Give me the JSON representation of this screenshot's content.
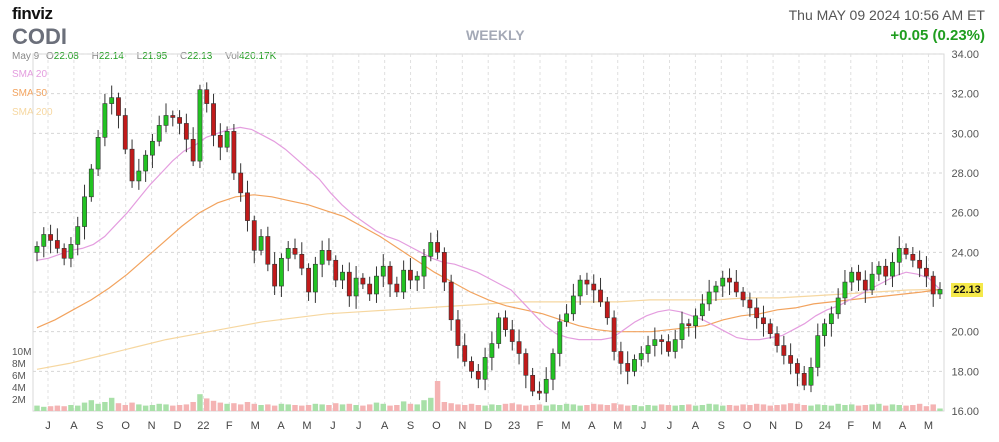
{
  "header": {
    "brand": "finviz",
    "ticker": "CODI",
    "period": "WEEKLY",
    "datetime": "Thu MAY 09 2024 10:56 AM ET",
    "change": "+0.05 (0.23%)"
  },
  "ohlc": {
    "date": "May 9",
    "open_label": "O",
    "open": "22.08",
    "high_label": "H",
    "high": "22.14",
    "low_label": "L",
    "low": "21.95",
    "close_label": "C",
    "close": "22.13",
    "vol_label": "Vol",
    "vol": "420.17K"
  },
  "legend": {
    "sma20": "SMA 20",
    "sma50": "SMA 50",
    "sma200": "SMA 200"
  },
  "last_price": "22.13",
  "colors": {
    "up": "#22c322",
    "down": "#c11a1a",
    "sma20": "#e49ddf",
    "sma50": "#f2a35e",
    "sma200": "#f6d7a0",
    "vol_up": "#a8e0a8",
    "vol_down": "#f4b3b3"
  },
  "chart_data": {
    "type": "candlestick",
    "interval": "weekly",
    "y_axis": {
      "min": 16,
      "max": 34,
      "ticks": [
        "34.00",
        "32.00",
        "30.00",
        "28.00",
        "26.00",
        "24.00",
        "22.00",
        "20.00",
        "18.00",
        "16.00"
      ]
    },
    "volume_axis": {
      "ticks": [
        "10M",
        "8M",
        "6M",
        "4M",
        "2M"
      ]
    },
    "x_tick_labels": [
      "J",
      "A",
      "S",
      "O",
      "N",
      "D",
      "22",
      "F",
      "M",
      "A",
      "M",
      "J",
      "J",
      "A",
      "S",
      "O",
      "N",
      "D",
      "23",
      "F",
      "M",
      "A",
      "M",
      "J",
      "J",
      "A",
      "S",
      "O",
      "N",
      "D",
      "24",
      "F",
      "M",
      "A",
      "M"
    ],
    "close_series": [
      24.3,
      24.9,
      24.6,
      24.2,
      23.7,
      24.4,
      25.3,
      26.8,
      28.2,
      29.8,
      31.5,
      31.8,
      30.9,
      29.2,
      27.6,
      28.1,
      28.9,
      29.6,
      30.4,
      30.9,
      30.8,
      30.5,
      29.7,
      28.6,
      32.2,
      31.5,
      29.9,
      29.3,
      30.1,
      28.0,
      27.0,
      25.6,
      24.1,
      24.8,
      23.4,
      22.3,
      23.7,
      24.2,
      23.9,
      23.2,
      22.0,
      23.4,
      24.1,
      23.6,
      22.6,
      23.0,
      21.8,
      22.7,
      22.4,
      21.9,
      22.8,
      23.3,
      22.4,
      22.0,
      23.1,
      22.6,
      22.8,
      23.8,
      24.5,
      24.0,
      22.5,
      20.6,
      19.3,
      18.5,
      18.0,
      17.6,
      18.7,
      19.4,
      20.7,
      20.1,
      19.5,
      18.9,
      17.8,
      17.0,
      16.9,
      17.6,
      18.9,
      20.5,
      20.9,
      21.8,
      22.6,
      22.4,
      22.1,
      21.5,
      20.7,
      19.0,
      18.4,
      18.0,
      18.6,
      18.9,
      19.3,
      19.6,
      19.5,
      19.0,
      19.6,
      20.4,
      20.3,
      20.8,
      21.4,
      22.0,
      22.3,
      22.7,
      22.5,
      22.0,
      21.6,
      21.2,
      20.7,
      20.4,
      19.9,
      19.3,
      18.8,
      18.4,
      17.9,
      17.3,
      18.2,
      19.8,
      20.4,
      20.9,
      21.7,
      22.5,
      23.0,
      22.6,
      22.1,
      22.9,
      23.3,
      22.8,
      23.5,
      24.2,
      23.9,
      23.6,
      23.2,
      22.8,
      21.9,
      22.13
    ],
    "sma20_series": [
      23.6,
      23.7,
      23.9,
      24.1,
      24.2,
      24.4,
      24.8,
      25.4,
      26.0,
      26.7,
      27.4,
      28.0,
      28.6,
      29.1,
      29.4,
      29.8,
      30.0,
      30.2,
      30.3,
      30.2,
      29.9,
      29.6,
      29.2,
      28.7,
      28.2,
      27.7,
      27.0,
      26.4,
      25.9,
      25.5,
      25.1,
      24.8,
      24.6,
      24.3,
      24.0,
      23.7,
      23.5,
      23.4,
      23.2,
      23.0,
      22.7,
      22.4,
      22.1,
      21.5,
      20.9,
      20.3,
      19.9,
      19.7,
      19.6,
      19.6,
      19.6,
      19.7,
      20.1,
      20.5,
      20.8,
      21.0,
      21.1,
      21.0,
      20.8,
      20.6,
      20.3,
      20.0,
      19.7,
      19.6,
      19.6,
      19.7,
      19.8,
      20.1,
      20.4,
      20.8,
      21.1,
      21.3,
      21.6,
      21.9,
      22.2,
      22.5,
      22.8,
      23.0,
      22.9,
      22.7,
      22.13
    ],
    "sma50_series": [
      20.2,
      20.6,
      21.1,
      21.6,
      22.2,
      22.9,
      23.7,
      24.5,
      25.3,
      26.0,
      26.5,
      26.8,
      26.9,
      26.8,
      26.6,
      26.4,
      26.1,
      25.8,
      25.3,
      24.8,
      24.2,
      23.6,
      23.0,
      22.5,
      22.0,
      21.6,
      21.3,
      21.1,
      20.9,
      20.6,
      20.3,
      20.1,
      20.0,
      20.0,
      20.0,
      20.1,
      20.2,
      20.3,
      20.6,
      20.8,
      20.9,
      21.1,
      21.2,
      21.4,
      21.5,
      21.6,
      21.7,
      21.8,
      21.9,
      22.0,
      22.13
    ],
    "sma200_series": [
      18.1,
      18.4,
      18.8,
      19.2,
      19.6,
      19.9,
      20.2,
      20.5,
      20.7,
      20.9,
      21.0,
      21.1,
      21.2,
      21.3,
      21.4,
      21.5,
      21.5,
      21.5,
      21.5,
      21.6,
      21.6,
      21.6,
      21.7,
      21.7,
      21.8,
      21.9,
      22.0,
      22.1,
      22.13
    ],
    "volume_series_millions": [
      0.9,
      0.7,
      0.8,
      0.9,
      0.8,
      1.0,
      0.9,
      1.4,
      1.8,
      1.2,
      1.5,
      2.2,
      1.3,
      1.0,
      1.4,
      1.1,
      0.9,
      1.0,
      1.2,
      1.1,
      0.9,
      1.0,
      1.1,
      1.5,
      2.8,
      2.1,
      1.7,
      1.4,
      1.2,
      1.3,
      1.1,
      1.5,
      1.2,
      1.0,
      1.1,
      0.9,
      1.2,
      1.1,
      1.0,
      0.9,
      1.0,
      1.2,
      1.1,
      1.0,
      1.3,
      1.1,
      1.2,
      1.0,
      0.9,
      1.1,
      1.4,
      1.2,
      0.9,
      1.0,
      1.6,
      1.2,
      1.1,
      1.8,
      2.2,
      5.0,
      1.5,
      1.3,
      1.1,
      1.0,
      1.2,
      1.0,
      0.9,
      1.1,
      1.0,
      1.2,
      1.3,
      1.1,
      0.9,
      1.0,
      1.1,
      0.9,
      1.1,
      1.0,
      1.2,
      1.1,
      0.9,
      1.0,
      1.2,
      1.1,
      1.0,
      1.3,
      1.1,
      0.9,
      1.0,
      0.8,
      1.0,
      0.9,
      1.1,
      1.0,
      0.9,
      1.0,
      1.1,
      0.9,
      1.0,
      1.2,
      1.1,
      0.9,
      1.0,
      0.9,
      1.1,
      1.0,
      1.2,
      1.1,
      0.9,
      1.0,
      1.1,
      1.3,
      1.2,
      1.0,
      0.9,
      1.1,
      1.0,
      0.9,
      1.2,
      1.0,
      1.1,
      0.9,
      1.0,
      1.1,
      1.2,
      0.9,
      1.1,
      1.0,
      0.9,
      1.0,
      1.2,
      0.8,
      1.1,
      0.42
    ]
  }
}
